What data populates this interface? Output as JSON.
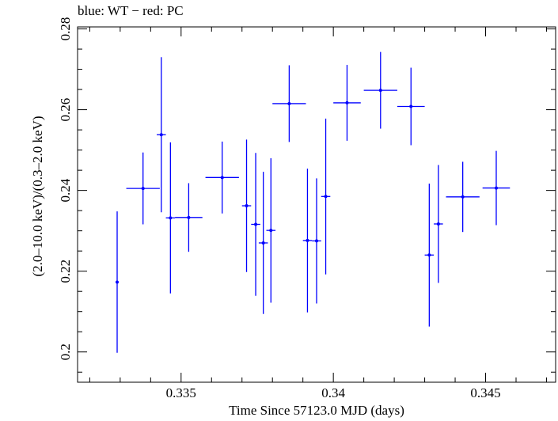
{
  "chart_data": {
    "type": "scatter",
    "title": "blue: WT − red: PC",
    "xlabel": "Time Since 57123.0 MJD (days)",
    "ylabel": "(2.0–10.0 keV)/(0.3–2.0 keV)",
    "xlim": [
      0.3316,
      0.3473
    ],
    "ylim": [
      0.1925,
      0.2805
    ],
    "x_ticks": [
      0.335,
      0.34,
      0.345
    ],
    "x_tick_labels": [
      "0.335",
      "0.34",
      "0.345"
    ],
    "y_ticks": [
      0.2,
      0.22,
      0.24,
      0.26,
      0.28
    ],
    "y_tick_labels": [
      "0.2",
      "0.22",
      "0.24",
      "0.26",
      "0.28"
    ],
    "grid": false,
    "legend": "none",
    "series": [
      {
        "color": "#0000ff",
        "points": [
          {
            "x": 0.3329,
            "y": 0.2173,
            "xerr": 0.0,
            "yerr": 0.0175
          },
          {
            "x": 0.33375,
            "y": 0.2405,
            "xerr": 0.00055,
            "yerr": 0.0089
          },
          {
            "x": 0.33435,
            "y": 0.2538,
            "xerr": 0.00015,
            "yerr": 0.0192
          },
          {
            "x": 0.33465,
            "y": 0.2332,
            "xerr": 0.00015,
            "yerr": 0.0187
          },
          {
            "x": 0.33525,
            "y": 0.2333,
            "xerr": 0.00045,
            "yerr": 0.0085
          },
          {
            "x": 0.33635,
            "y": 0.2432,
            "xerr": 0.00055,
            "yerr": 0.0089
          },
          {
            "x": 0.33715,
            "y": 0.2362,
            "xerr": 0.00015,
            "yerr": 0.0164
          },
          {
            "x": 0.33745,
            "y": 0.2316,
            "xerr": 0.00015,
            "yerr": 0.0177
          },
          {
            "x": 0.3377,
            "y": 0.227,
            "xerr": 0.00015,
            "yerr": 0.0176
          },
          {
            "x": 0.33795,
            "y": 0.2301,
            "xerr": 0.00015,
            "yerr": 0.0179
          },
          {
            "x": 0.33855,
            "y": 0.2615,
            "xerr": 0.00055,
            "yerr": 0.0095
          },
          {
            "x": 0.33915,
            "y": 0.2276,
            "xerr": 0.00015,
            "yerr": 0.0178
          },
          {
            "x": 0.33945,
            "y": 0.2275,
            "xerr": 0.00015,
            "yerr": 0.0155
          },
          {
            "x": 0.33975,
            "y": 0.2385,
            "xerr": 0.00015,
            "yerr": 0.0193
          },
          {
            "x": 0.34045,
            "y": 0.2617,
            "xerr": 0.00045,
            "yerr": 0.0094
          },
          {
            "x": 0.34155,
            "y": 0.2648,
            "xerr": 0.00055,
            "yerr": 0.0095
          },
          {
            "x": 0.34255,
            "y": 0.2608,
            "xerr": 0.00045,
            "yerr": 0.0096
          },
          {
            "x": 0.34315,
            "y": 0.224,
            "xerr": 0.00015,
            "yerr": 0.0177
          },
          {
            "x": 0.34345,
            "y": 0.2317,
            "xerr": 0.00015,
            "yerr": 0.0146
          },
          {
            "x": 0.34425,
            "y": 0.2384,
            "xerr": 0.00055,
            "yerr": 0.0087
          },
          {
            "x": 0.34535,
            "y": 0.2406,
            "xerr": 0.00045,
            "yerr": 0.0092
          }
        ]
      }
    ]
  }
}
